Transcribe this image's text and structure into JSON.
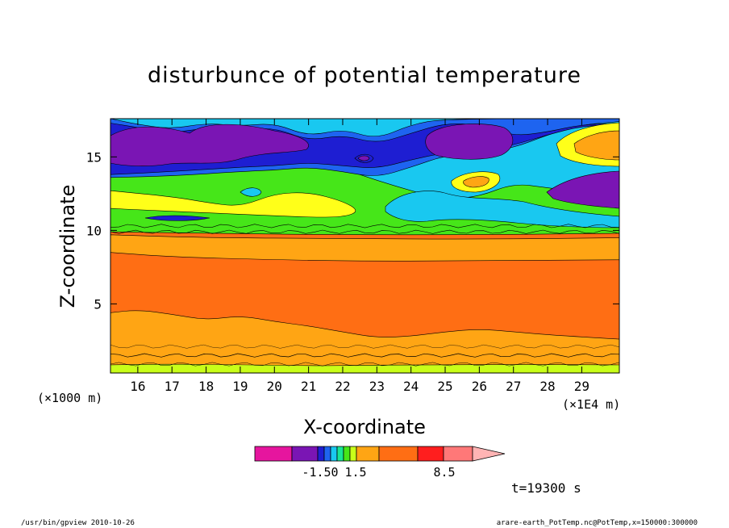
{
  "chart_data": {
    "type": "heatmap",
    "title": "disturbunce of potential temperature",
    "xlabel": "X-coordinate",
    "ylabel": "Z-coordinate",
    "x_unit_left": "(×1000 m)",
    "x_unit_right": "(×1E4 m)",
    "xlim": [
      15.2,
      30.1
    ],
    "ylim": [
      0.3,
      17.6
    ],
    "x_ticks": [
      "16",
      "17",
      "18",
      "19",
      "20",
      "21",
      "22",
      "23",
      "24",
      "25",
      "26",
      "27",
      "28",
      "29"
    ],
    "y_ticks": [
      "5",
      "10",
      "15"
    ],
    "colorbar": {
      "colors": [
        "#e6159e",
        "#7a15b4",
        "#1e1ed2",
        "#1e64f0",
        "#19c8f0",
        "#19e696",
        "#46e619",
        "#c8ff19",
        "#ffa514",
        "#ff6e14",
        "#ff1e1e",
        "#ff7878",
        "#ffb4b4"
      ],
      "labels": [
        "-1.50",
        "1.5",
        "8.5"
      ]
    },
    "time_label": "t=19300 s",
    "footer_left": "/usr/bin/gpview   2010-10-26",
    "footer_right": "arare-earth_PotTemp.nc@PotTemp,x=150000:300000",
    "layers": [
      {
        "name": "layer-orange-base",
        "color": "#ffa514",
        "zone": "full",
        "top": [
          [
            15.2,
            9.7
          ],
          [
            18,
            9.5
          ],
          [
            22,
            9.45
          ],
          [
            26,
            9.4
          ],
          [
            30.1,
            9.5
          ]
        ],
        "bottom": null
      },
      {
        "name": "layer-darkorange-core",
        "color": "#ff6e14",
        "zone": "full",
        "top": [
          [
            15.2,
            8.5
          ],
          [
            17,
            8.2
          ],
          [
            20,
            8.0
          ],
          [
            23,
            7.9
          ],
          [
            26,
            7.95
          ],
          [
            30.1,
            8.0
          ]
        ],
        "bottom": [
          [
            15.2,
            4.4
          ],
          [
            16,
            4.6
          ],
          [
            17,
            4.3
          ],
          [
            18,
            3.9
          ],
          [
            19,
            4.2
          ],
          [
            20,
            3.8
          ],
          [
            21,
            3.5
          ],
          [
            22,
            3.1
          ],
          [
            23,
            2.7
          ],
          [
            24,
            2.8
          ],
          [
            25,
            3.1
          ],
          [
            26,
            3.3
          ],
          [
            27,
            3.1
          ],
          [
            28,
            2.9
          ],
          [
            30.1,
            2.6
          ]
        ]
      },
      {
        "name": "layer-green-upper",
        "color": "#46e619",
        "zone": "top",
        "top": null,
        "bottom": [
          [
            15.2,
            9.9
          ],
          [
            18,
            9.8
          ],
          [
            22,
            9.7
          ],
          [
            26,
            9.7
          ],
          [
            30.1,
            9.8
          ]
        ]
      },
      {
        "name": "layer-cyan-upper",
        "color": "#19c8f0",
        "zone": "top",
        "top": null,
        "bottom": [
          [
            15.2,
            15.5
          ],
          [
            17,
            14.8
          ],
          [
            19,
            14.4
          ],
          [
            20,
            14.2
          ],
          [
            21,
            14.5
          ],
          [
            22,
            14.2
          ],
          [
            23,
            13.4
          ],
          [
            24,
            12.7
          ],
          [
            25,
            12.1
          ],
          [
            26,
            12.3
          ],
          [
            27,
            13.2
          ],
          [
            28,
            12.9
          ],
          [
            29,
            12.6
          ],
          [
            30.1,
            12.2
          ]
        ]
      },
      {
        "name": "layer-blue-upper",
        "color": "#1e64f0",
        "zone": "top",
        "top": [
          [
            15.2,
            17.6
          ],
          [
            16,
            17.2
          ],
          [
            17,
            16.9
          ],
          [
            18,
            17.3
          ],
          [
            19,
            17.1
          ],
          [
            20,
            17.3
          ],
          [
            21,
            16.4
          ],
          [
            22,
            16.9
          ],
          [
            23,
            16.2
          ],
          [
            24,
            17.2
          ],
          [
            25,
            17.6
          ],
          [
            30.1,
            17.6
          ]
        ],
        "bottom": [
          [
            15.2,
            13.6
          ],
          [
            17,
            13.7
          ],
          [
            19,
            14.0
          ],
          [
            20,
            14.1
          ],
          [
            21,
            14.3
          ],
          [
            22,
            14.0
          ],
          [
            23,
            13.6
          ],
          [
            24,
            14.3
          ],
          [
            25,
            15.1
          ],
          [
            26,
            15.3
          ],
          [
            27,
            15.6
          ],
          [
            28,
            16.5
          ],
          [
            29,
            17.2
          ],
          [
            30.1,
            17.4
          ]
        ]
      },
      {
        "name": "layer-navy-upper",
        "color": "#1e1ed2",
        "zone": "top",
        "top": [
          [
            15.2,
            17.3
          ],
          [
            16,
            17.0
          ],
          [
            17,
            16.6
          ],
          [
            18,
            17.0
          ],
          [
            19,
            16.8
          ],
          [
            20,
            17.0
          ],
          [
            21,
            16.1
          ],
          [
            22,
            16.5
          ],
          [
            23,
            15.9
          ],
          [
            24,
            16.6
          ],
          [
            25,
            17.3
          ],
          [
            26,
            17.2
          ],
          [
            27,
            16.4
          ],
          [
            28,
            16.7
          ],
          [
            29,
            17.2
          ],
          [
            30.1,
            17.3
          ]
        ],
        "bottom": [
          [
            15.2,
            13.8
          ],
          [
            17,
            14.0
          ],
          [
            19,
            14.3
          ],
          [
            20,
            14.4
          ],
          [
            21,
            14.6
          ],
          [
            22,
            14.4
          ],
          [
            23,
            14.2
          ],
          [
            24,
            14.8
          ],
          [
            25,
            15.3
          ],
          [
            26,
            15.4
          ],
          [
            27,
            15.8
          ],
          [
            28,
            16.5
          ],
          [
            29,
            17.1
          ],
          [
            30.1,
            17.2
          ]
        ]
      },
      {
        "name": "layer-yellow-mid",
        "color": "#ffff19",
        "zone": "top",
        "top": [
          [
            15.2,
            12.7
          ],
          [
            17,
            12.3
          ],
          [
            18,
            11.9
          ],
          [
            19,
            11.6
          ],
          [
            20,
            12.5
          ],
          [
            21,
            12.6
          ],
          [
            22,
            12.0
          ],
          [
            22.5,
            11.3
          ],
          [
            22,
            10.9
          ],
          [
            21,
            10.9
          ],
          [
            20,
            11.0
          ],
          [
            18,
            11.2
          ],
          [
            16,
            11.4
          ],
          [
            15.2,
            11.5
          ]
        ],
        "bottom": null
      }
    ]
  }
}
